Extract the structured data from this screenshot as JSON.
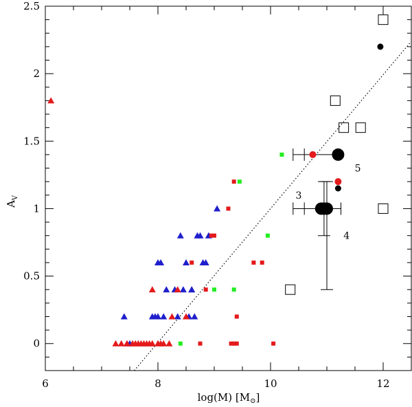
{
  "chart_data": {
    "type": "scatter",
    "title": "",
    "xlabel": "log(M) [M",
    "xlabel_sub": "⊙",
    "xlabel_close": "]",
    "ylabel": "A",
    "ylabel_sub": "V",
    "xlim": [
      6,
      12.5
    ],
    "ylim": [
      -0.2,
      2.5
    ],
    "xticks": [
      6,
      8,
      10,
      12
    ],
    "xtick_labels": [
      "6",
      "8",
      "10",
      "12"
    ],
    "yticks": [
      0,
      0.5,
      1,
      1.5,
      2,
      2.5
    ],
    "ytick_labels": [
      "0",
      "0.5",
      "1",
      "1.5",
      "2",
      "2.5"
    ],
    "colors": {
      "red": "#e41a1c",
      "blue": "#1f1fcc",
      "green": "#22ee22",
      "black": "#000000"
    },
    "series": [
      {
        "name": "blue triangles",
        "marker": "triangle",
        "color": "blue",
        "x": [
          7.4,
          7.9,
          7.95,
          8.0,
          8.05,
          8.15,
          8.3,
          8.4,
          8.5,
          8.6,
          8.65,
          8.7,
          8.85,
          9.05,
          8.0,
          8.1,
          8.45,
          8.55,
          8.9,
          8.75,
          8.8,
          8.6,
          8.35,
          7.5
        ],
        "y": [
          0.2,
          0.2,
          0.2,
          0.6,
          0.6,
          0.4,
          0.4,
          0.8,
          0.6,
          0.4,
          0.2,
          0.8,
          0.6,
          1.0,
          0.2,
          0.2,
          0.4,
          0.2,
          0.8,
          0.8,
          0.6,
          0.4,
          0.2,
          0.0
        ]
      },
      {
        "name": "red triangles",
        "marker": "triangle",
        "color": "red",
        "x": [
          6.1,
          7.25,
          7.35,
          7.45,
          7.55,
          7.6,
          7.7,
          7.8,
          7.9,
          8.0,
          8.1,
          8.2,
          7.45,
          7.65,
          7.85,
          7.9,
          8.25,
          8.35,
          8.5,
          7.75,
          8.05
        ],
        "y": [
          1.8,
          0.0,
          0.0,
          0.0,
          0.0,
          0.0,
          0.0,
          0.0,
          0.0,
          0.0,
          0.0,
          0.0,
          0.0,
          0.0,
          0.0,
          0.4,
          0.2,
          0.4,
          0.2,
          0.0,
          0.0
        ]
      },
      {
        "name": "red squares",
        "marker": "square",
        "color": "red",
        "x": [
          8.75,
          9.3,
          9.35,
          9.4,
          9.4,
          9.35,
          9.25,
          8.95,
          8.85,
          9.7,
          9.85,
          10.05,
          8.6,
          9.0
        ],
        "y": [
          0.0,
          0.0,
          0.0,
          0.0,
          0.2,
          1.2,
          1.0,
          0.8,
          0.4,
          0.6,
          0.6,
          0.0,
          0.6,
          0.8
        ],
        "size": 6
      },
      {
        "name": "green squares",
        "marker": "square",
        "color": "green",
        "x": [
          8.4,
          9.0,
          9.35,
          9.45,
          9.95,
          10.2
        ],
        "y": [
          0.0,
          0.4,
          0.4,
          1.2,
          0.8,
          1.4
        ],
        "size": 6
      },
      {
        "name": "red circles",
        "marker": "circle",
        "color": "red",
        "x": [
          10.75,
          11.2
        ],
        "y": [
          1.4,
          1.2
        ],
        "size": 5
      },
      {
        "name": "black small circles",
        "marker": "circle",
        "color": "black",
        "x": [
          11.95,
          11.2
        ],
        "y": [
          2.2,
          1.15
        ],
        "size": 4.5
      },
      {
        "name": "black large circles",
        "marker": "circle",
        "color": "black",
        "x": [
          10.9,
          11.0,
          11.2,
          10.95
        ],
        "y": [
          1.0,
          1.0,
          1.4,
          1.0
        ],
        "size": 9
      },
      {
        "name": "open squares",
        "marker": "open-square",
        "color": "black",
        "x": [
          12.0,
          11.15,
          11.3,
          11.6,
          12.0,
          10.35
        ],
        "y": [
          2.4,
          1.8,
          1.6,
          1.6,
          1.0,
          0.4
        ],
        "size": 7
      }
    ],
    "error_bars": [
      {
        "x": 11.2,
        "y": 1.4,
        "xerr": [
          0.8,
          0.0
        ],
        "yerr": [
          0.0,
          0.0
        ]
      },
      {
        "x": 10.95,
        "y": 1.0,
        "xerr": [
          0.55,
          0.3
        ],
        "yerr": [
          0.2,
          0.2
        ]
      },
      {
        "x": 11.0,
        "y": 1.0,
        "xerr": [
          0.0,
          0.0
        ],
        "yerr": [
          0.6,
          0.2
        ]
      }
    ],
    "fit_line": {
      "style": "dotted",
      "x": [
        7.58,
        12.5
      ],
      "y": [
        -0.2,
        2.24
      ]
    },
    "annotations": [
      {
        "text": "5",
        "x": 11.55,
        "y": 1.3
      },
      {
        "text": "3",
        "x": 10.5,
        "y": 1.1
      },
      {
        "text": "4",
        "x": 11.35,
        "y": 0.8
      }
    ]
  }
}
